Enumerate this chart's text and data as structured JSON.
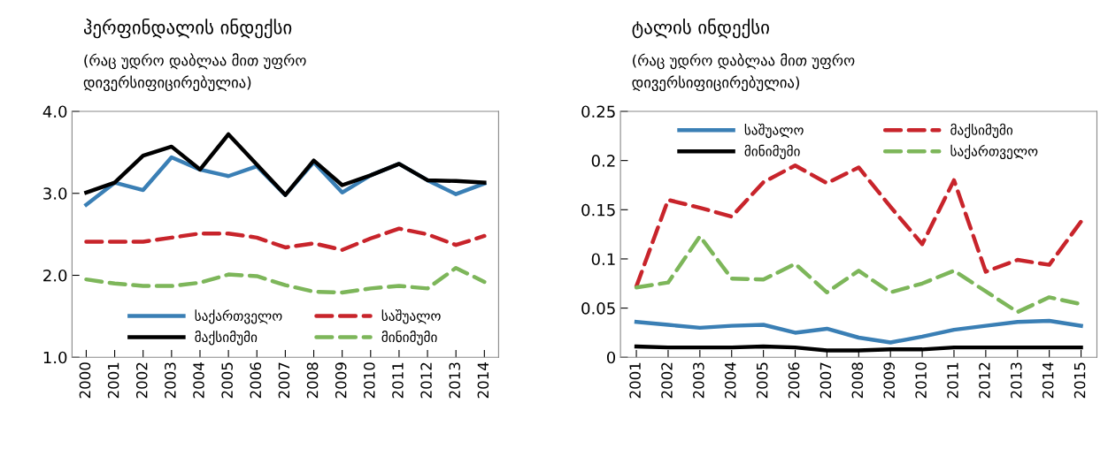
{
  "chart_data": [
    {
      "type": "line",
      "title": "ჰერფინდალის ინდექსი",
      "subtitle": "(რაც უდრო დაბლაა მით უფრო\nდივერსიფიცირებულია)",
      "categories": [
        "2000",
        "2001",
        "2002",
        "2003",
        "2004",
        "2005",
        "2006",
        "2007",
        "2008",
        "2009",
        "2010",
        "2011",
        "2012",
        "2013",
        "2014"
      ],
      "ylim": [
        1,
        4
      ],
      "yticks": [
        {
          "value": 1,
          "label": "1.0"
        },
        {
          "value": 2,
          "label": "2.0"
        },
        {
          "value": 3,
          "label": "3.0"
        },
        {
          "value": 4,
          "label": "4.0"
        }
      ],
      "legend": "bottom",
      "grid": false,
      "series": [
        {
          "name": "საქართველო",
          "color": "#3a7fb5",
          "line_style": "solid",
          "values": [
            2.86,
            3.13,
            3.04,
            3.44,
            3.29,
            3.21,
            3.33,
            2.98,
            3.38,
            3.01,
            3.22,
            3.36,
            3.16,
            2.99,
            3.12
          ]
        },
        {
          "name": "საშუალო",
          "color": "#c8242b",
          "line_style": "dashed",
          "values": [
            2.41,
            2.41,
            2.41,
            2.46,
            2.51,
            2.51,
            2.46,
            2.34,
            2.39,
            2.31,
            2.45,
            2.57,
            2.5,
            2.37,
            2.48
          ]
        },
        {
          "name": "მაქსიმუმი",
          "color": "#000000",
          "line_style": "solid",
          "values": [
            3.01,
            3.13,
            3.46,
            3.57,
            3.29,
            3.72,
            3.35,
            2.98,
            3.4,
            3.1,
            3.22,
            3.36,
            3.16,
            3.15,
            3.13
          ]
        },
        {
          "name": "მინიმუმი",
          "color": "#7db65a",
          "line_style": "dashed",
          "values": [
            1.95,
            1.9,
            1.87,
            1.87,
            1.91,
            2.01,
            1.99,
            1.88,
            1.8,
            1.79,
            1.84,
            1.87,
            1.84,
            2.09,
            1.92
          ]
        }
      ]
    },
    {
      "type": "line",
      "title": "ტალის ინდექსი",
      "subtitle": "(რაც უდრო დაბლაა მით უფრო\nდივერსიფიცირებულია)",
      "categories": [
        "2001",
        "2002",
        "2003",
        "2004",
        "2005",
        "2006",
        "2007",
        "2008",
        "2009",
        "2010",
        "2011",
        "2012",
        "2013",
        "2014",
        "2015"
      ],
      "ylim": [
        0,
        0.25
      ],
      "yticks": [
        0,
        0.05,
        0.1,
        0.15,
        0.2,
        0.25
      ],
      "legend": "top",
      "grid": false,
      "series": [
        {
          "name": "საშუალო",
          "color": "#3a7fb5",
          "line_style": "solid",
          "values": [
            0.036,
            0.033,
            0.03,
            0.032,
            0.033,
            0.025,
            0.029,
            0.02,
            0.015,
            0.021,
            0.028,
            0.032,
            0.036,
            0.037,
            0.032
          ]
        },
        {
          "name": "მაქსიმუმი",
          "color": "#c8242b",
          "line_style": "dashed",
          "values": [
            0.072,
            0.16,
            0.152,
            0.143,
            0.178,
            0.195,
            0.177,
            0.193,
            0.153,
            0.115,
            0.18,
            0.087,
            0.099,
            0.094,
            0.138
          ]
        },
        {
          "name": "მინიმუმი",
          "color": "#000000",
          "line_style": "solid",
          "values": [
            0.011,
            0.01,
            0.01,
            0.01,
            0.011,
            0.01,
            0.007,
            0.007,
            0.008,
            0.008,
            0.01,
            0.01,
            0.01,
            0.01,
            0.01
          ]
        },
        {
          "name": "საქართველო",
          "color": "#7db65a",
          "line_style": "dashed",
          "values": [
            0.071,
            0.076,
            0.123,
            0.08,
            0.079,
            0.095,
            0.066,
            0.088,
            0.066,
            0.075,
            0.088,
            0.067,
            0.046,
            0.061,
            0.054
          ]
        }
      ]
    }
  ]
}
